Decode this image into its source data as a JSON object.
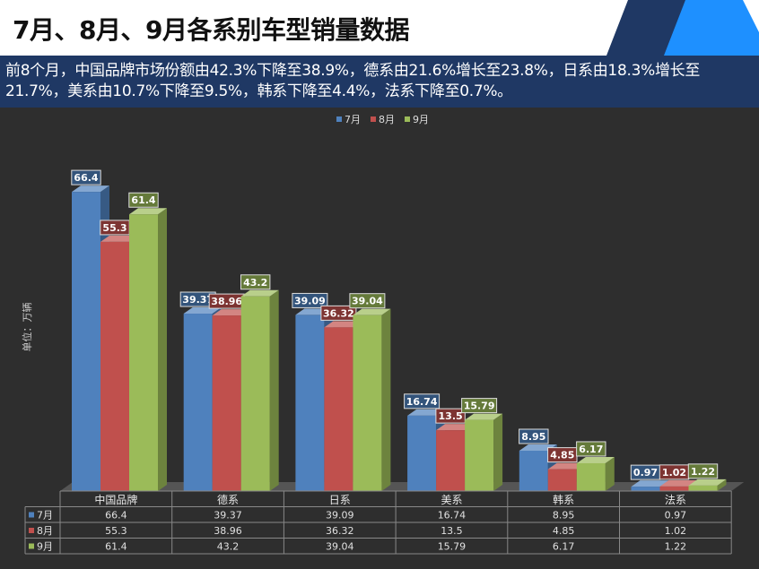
{
  "page": {
    "title": "7月、8月、9月各系别车型销量数据",
    "subtitle": "前8个月，中国品牌市场份额由42.3%下降至38.9%，德系由21.6%增长至23.8%，日系由18.3%增长至21.7%，美系由10.7%下降至9.5%，韩系下降至4.4%，法系下降至0.7%。"
  },
  "colors": {
    "header_bg": "#ffffff",
    "subtitle_bg": "#1f3864",
    "chart_bg": "#2e2e2e",
    "accent_blue": "#1e90ff",
    "accent_navy": "#1f3864"
  },
  "chart_data": {
    "type": "bar",
    "categories": [
      "中国品牌",
      "德系",
      "日系",
      "美系",
      "韩系",
      "法系"
    ],
    "series": [
      {
        "name": "7月",
        "values": [
          66.4,
          39.37,
          39.09,
          16.74,
          8.95,
          0.97
        ],
        "color": "#4f81bd"
      },
      {
        "name": "8月",
        "values": [
          55.3,
          38.96,
          36.32,
          13.5,
          4.85,
          1.02
        ],
        "color": "#c0504d"
      },
      {
        "name": "9月",
        "values": [
          61.4,
          43.2,
          39.04,
          15.79,
          6.17,
          1.22
        ],
        "color": "#9bbb59"
      }
    ],
    "table_rows": [
      [
        "66.4",
        "39.37",
        "39.09",
        "16.74",
        "8.95",
        "0.97"
      ],
      [
        "55.3",
        "38.96",
        "36.32",
        "13.5",
        "4.85",
        "1.02"
      ],
      [
        "61.4",
        "43.2",
        "39.04",
        "15.79",
        "6.17",
        "1.22"
      ]
    ],
    "ylabel": "单位：万辆",
    "ylim": [
      0,
      70
    ],
    "legend_position": "top-center",
    "grid": false,
    "data_table": true,
    "three_d": true
  }
}
